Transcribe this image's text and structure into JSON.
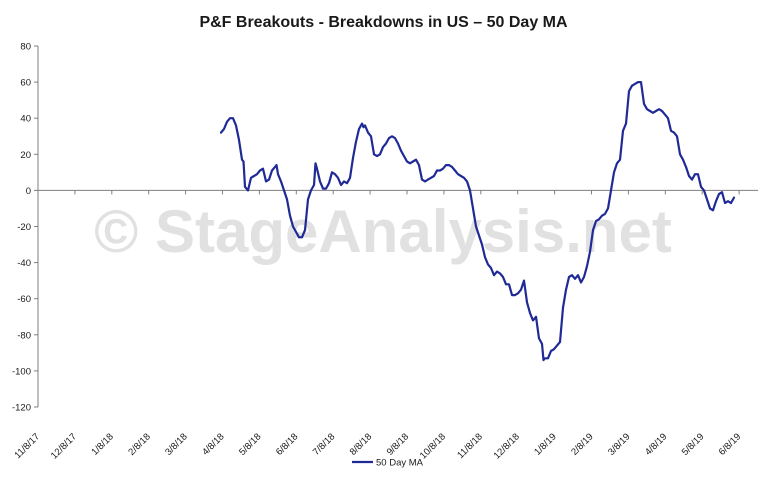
{
  "chart_data": {
    "type": "line",
    "title": "P&F Breakouts - Breakdowns in US – 50 Day MA",
    "watermark": "© StageAnalysis.net",
    "xlabel": "",
    "ylabel": "",
    "ylim": [
      -120,
      80
    ],
    "yticks": [
      80,
      60,
      40,
      20,
      0,
      -20,
      -40,
      -60,
      -80,
      -100,
      -120
    ],
    "yticks_labels": [
      "80",
      "60",
      "40",
      "20",
      "0",
      "-20",
      "-40",
      "-60",
      "-80",
      "-100",
      "-120"
    ],
    "x_tick_labels": [
      "11/8/17",
      "12/8/17",
      "1/8/18",
      "2/8/18",
      "3/8/18",
      "4/8/18",
      "5/8/18",
      "6/8/18",
      "7/8/18",
      "8/8/18",
      "9/8/18",
      "10/8/18",
      "11/8/18",
      "12/8/18",
      "1/8/19",
      "2/8/19",
      "3/8/19",
      "4/8/19",
      "5/8/19",
      "6/8/19"
    ],
    "x_domain_days": [
      0,
      240
    ],
    "grid": false,
    "legend_position": "bottom",
    "colors": {
      "series": "#1f2a96",
      "axis": "#7f7f7f",
      "watermark": "#dcdcdc"
    },
    "series": [
      {
        "name": "50 Day MA",
        "points": [
          [
            61,
            32
          ],
          [
            62,
            34
          ],
          [
            63,
            38
          ],
          [
            64,
            40
          ],
          [
            65,
            40
          ],
          [
            66,
            36
          ],
          [
            67,
            28
          ],
          [
            68,
            17
          ],
          [
            68.5,
            16
          ],
          [
            69,
            2
          ],
          [
            70,
            0
          ],
          [
            71,
            7
          ],
          [
            72,
            8
          ],
          [
            73,
            9
          ],
          [
            74,
            11
          ],
          [
            75,
            12
          ],
          [
            76,
            5
          ],
          [
            77,
            6
          ],
          [
            78,
            11
          ],
          [
            79,
            13
          ],
          [
            79.5,
            14
          ],
          [
            80,
            9
          ],
          [
            81,
            5
          ],
          [
            82,
            0
          ],
          [
            83,
            -5
          ],
          [
            84,
            -14
          ],
          [
            85,
            -20
          ],
          [
            86,
            -23
          ],
          [
            87,
            -26
          ],
          [
            88,
            -26
          ],
          [
            89,
            -22
          ],
          [
            90,
            -5
          ],
          [
            91,
            0
          ],
          [
            92,
            3
          ],
          [
            92.5,
            15
          ],
          [
            93,
            12
          ],
          [
            94,
            5
          ],
          [
            95,
            1
          ],
          [
            96,
            1
          ],
          [
            97,
            4
          ],
          [
            98,
            10
          ],
          [
            99,
            9
          ],
          [
            100,
            7
          ],
          [
            101,
            3
          ],
          [
            102,
            5
          ],
          [
            103,
            4
          ],
          [
            104,
            7
          ],
          [
            105,
            18
          ],
          [
            106,
            27
          ],
          [
            107,
            34
          ],
          [
            108,
            37
          ],
          [
            108.5,
            35
          ],
          [
            109,
            36
          ],
          [
            110,
            32
          ],
          [
            111,
            30
          ],
          [
            112,
            20
          ],
          [
            113,
            19
          ],
          [
            114,
            20
          ],
          [
            115,
            24
          ],
          [
            116,
            26
          ],
          [
            117,
            29
          ],
          [
            118,
            30
          ],
          [
            119,
            29
          ],
          [
            120,
            26
          ],
          [
            121,
            22
          ],
          [
            122,
            19
          ],
          [
            123,
            16
          ],
          [
            124,
            15
          ],
          [
            125,
            16
          ],
          [
            126,
            17
          ],
          [
            127,
            14
          ],
          [
            128,
            6
          ],
          [
            129,
            5
          ],
          [
            130,
            6
          ],
          [
            131,
            7
          ],
          [
            132,
            8
          ],
          [
            133,
            11
          ],
          [
            134,
            11
          ],
          [
            135,
            12
          ],
          [
            136,
            14
          ],
          [
            137,
            14
          ],
          [
            138,
            13
          ],
          [
            139,
            11
          ],
          [
            140,
            9
          ],
          [
            141,
            8
          ],
          [
            142,
            7
          ],
          [
            143,
            5
          ],
          [
            144,
            0
          ],
          [
            145,
            -10
          ],
          [
            146,
            -20
          ],
          [
            147,
            -25
          ],
          [
            148,
            -30
          ],
          [
            149,
            -37
          ],
          [
            150,
            -41
          ],
          [
            151,
            -43
          ],
          [
            152,
            -47
          ],
          [
            153,
            -45
          ],
          [
            154,
            -46
          ],
          [
            155,
            -48
          ],
          [
            156,
            -52
          ],
          [
            157,
            -52
          ],
          [
            158,
            -58
          ],
          [
            159,
            -58
          ],
          [
            160,
            -57
          ],
          [
            161,
            -55
          ],
          [
            162,
            -50
          ],
          [
            163,
            -62
          ],
          [
            164,
            -68
          ],
          [
            165,
            -72
          ],
          [
            166,
            -70
          ],
          [
            167,
            -82
          ],
          [
            168,
            -85
          ],
          [
            168.5,
            -94
          ],
          [
            169,
            -93
          ],
          [
            170,
            -93
          ],
          [
            171,
            -89
          ],
          [
            172,
            -88
          ],
          [
            173,
            -86
          ],
          [
            174,
            -84
          ],
          [
            175,
            -65
          ],
          [
            176,
            -55
          ],
          [
            177,
            -48
          ],
          [
            178,
            -47
          ],
          [
            179,
            -49
          ],
          [
            180,
            -47
          ],
          [
            181,
            -51
          ],
          [
            182,
            -48
          ],
          [
            183,
            -42
          ],
          [
            184,
            -34
          ],
          [
            185,
            -22
          ],
          [
            186,
            -17
          ],
          [
            187,
            -16
          ],
          [
            188,
            -14
          ],
          [
            189,
            -13
          ],
          [
            190,
            -10
          ],
          [
            191,
            0
          ],
          [
            192,
            10
          ],
          [
            193,
            15
          ],
          [
            194,
            17
          ],
          [
            195,
            33
          ],
          [
            196,
            37
          ],
          [
            197,
            55
          ],
          [
            198,
            58
          ],
          [
            199,
            59
          ],
          [
            200,
            60
          ],
          [
            201,
            60
          ],
          [
            202,
            48
          ],
          [
            203,
            45
          ],
          [
            204,
            44
          ],
          [
            205,
            43
          ],
          [
            206,
            44
          ],
          [
            207,
            45
          ],
          [
            208,
            44
          ],
          [
            209,
            42
          ],
          [
            210,
            40
          ],
          [
            211,
            33
          ],
          [
            212,
            32
          ],
          [
            213,
            30
          ],
          [
            214,
            20
          ],
          [
            215,
            17
          ],
          [
            216,
            13
          ],
          [
            217,
            8
          ],
          [
            218,
            6
          ],
          [
            219,
            9
          ],
          [
            220,
            9
          ],
          [
            221,
            2
          ],
          [
            222,
            0
          ],
          [
            223,
            -5
          ],
          [
            224,
            -10
          ],
          [
            225,
            -11
          ],
          [
            226,
            -6
          ],
          [
            227,
            -2
          ],
          [
            228,
            -1
          ],
          [
            229,
            -7
          ],
          [
            230,
            -6
          ],
          [
            231,
            -7
          ],
          [
            232,
            -4
          ]
        ]
      }
    ]
  }
}
